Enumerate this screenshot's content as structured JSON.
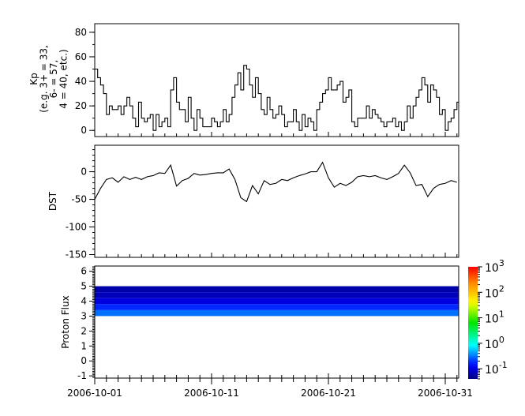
{
  "chart_data": [
    {
      "type": "line",
      "ylabel_lines": [
        "Kp",
        "(e.g. 3+ = 33,",
        "6- = 57,",
        "4 = 40, etc.)"
      ],
      "ylim": [
        -5,
        87
      ],
      "yticks": [
        0,
        20,
        40,
        60,
        80
      ],
      "x_start": "2006-10-01T00:00",
      "x_step_hours": 6,
      "step_plot": true,
      "line_color": "#000000",
      "values": [
        50,
        43,
        37,
        30,
        13,
        20,
        17,
        17,
        20,
        13,
        20,
        27,
        20,
        10,
        3,
        23,
        10,
        7,
        10,
        13,
        0,
        13,
        3,
        7,
        10,
        3,
        33,
        43,
        23,
        17,
        17,
        7,
        27,
        10,
        0,
        17,
        10,
        3,
        3,
        3,
        10,
        7,
        3,
        7,
        17,
        7,
        13,
        27,
        37,
        47,
        33,
        53,
        50,
        37,
        27,
        43,
        30,
        17,
        13,
        27,
        17,
        10,
        13,
        20,
        13,
        3,
        7,
        7,
        17,
        7,
        0,
        13,
        3,
        10,
        7,
        0,
        17,
        23,
        30,
        33,
        43,
        33,
        33,
        37,
        40,
        23,
        27,
        33,
        7,
        3,
        10,
        10,
        10,
        20,
        10,
        17,
        13,
        10,
        7,
        3,
        7,
        7,
        10,
        3,
        7,
        0,
        7,
        20,
        10,
        20,
        27,
        33,
        43,
        37,
        23,
        37,
        33,
        27,
        13,
        17,
        0,
        7,
        10,
        17,
        23
      ]
    },
    {
      "type": "line",
      "ylabel": "DST",
      "ylim": [
        -155,
        48
      ],
      "yticks": [
        0,
        -50,
        -100,
        -150
      ],
      "x_start": "2006-10-01T00:00",
      "x_step_hours": 12,
      "line_color": "#000000",
      "values": [
        -50,
        -30,
        -14,
        -11,
        -19,
        -9,
        -14,
        -10,
        -14,
        -9,
        -7,
        -2,
        -3,
        12,
        -26,
        -16,
        -12,
        -3,
        -6,
        -5,
        -3,
        -2,
        -2,
        5,
        -14,
        -47,
        -54,
        -25,
        -40,
        -16,
        -23,
        -21,
        -14,
        -16,
        -11,
        -7,
        -4,
        0,
        0,
        17,
        -11,
        -28,
        -21,
        -25,
        -19,
        -9,
        -7,
        -9,
        -7,
        -11,
        -14,
        -9,
        -3,
        12,
        -2,
        -25,
        -23,
        -45,
        -30,
        -23,
        -21,
        -16,
        -19
      ]
    },
    {
      "type": "heatmap",
      "ylabel": "Proton Flux",
      "ylim": [
        -1.15,
        6.35
      ],
      "yticks": [
        -1,
        0,
        1,
        2,
        3,
        4,
        5,
        6
      ],
      "y_bins": [
        [
          3.0,
          3.4
        ],
        [
          3.4,
          3.8
        ],
        [
          3.8,
          4.2
        ],
        [
          4.2,
          4.6
        ],
        [
          4.6,
          5.0
        ]
      ],
      "bin_flux": [
        0.3,
        0.18,
        0.1,
        0.07,
        0.06
      ],
      "colorbar": {
        "scale": "log",
        "range": [
          0.04,
          1000
        ],
        "colormap": "rainbow",
        "tick_labels": [
          {
            "base": "10",
            "exp": "3",
            "value": 1000
          },
          {
            "base": "10",
            "exp": "2",
            "value": 100
          },
          {
            "base": "10",
            "exp": "1",
            "value": 10
          },
          {
            "base": "10",
            "exp": "0",
            "value": 1
          },
          {
            "base": "10",
            "exp": "-1",
            "value": 0.1
          }
        ]
      }
    }
  ],
  "x_axis": {
    "range": [
      "2006-10-01",
      "2006-11-01T03:00"
    ],
    "tick_labels": [
      "2006-10-01",
      "2006-10-11",
      "2006-10-21",
      "2006-10-31"
    ],
    "tick_days": [
      0,
      10,
      20,
      30
    ]
  }
}
